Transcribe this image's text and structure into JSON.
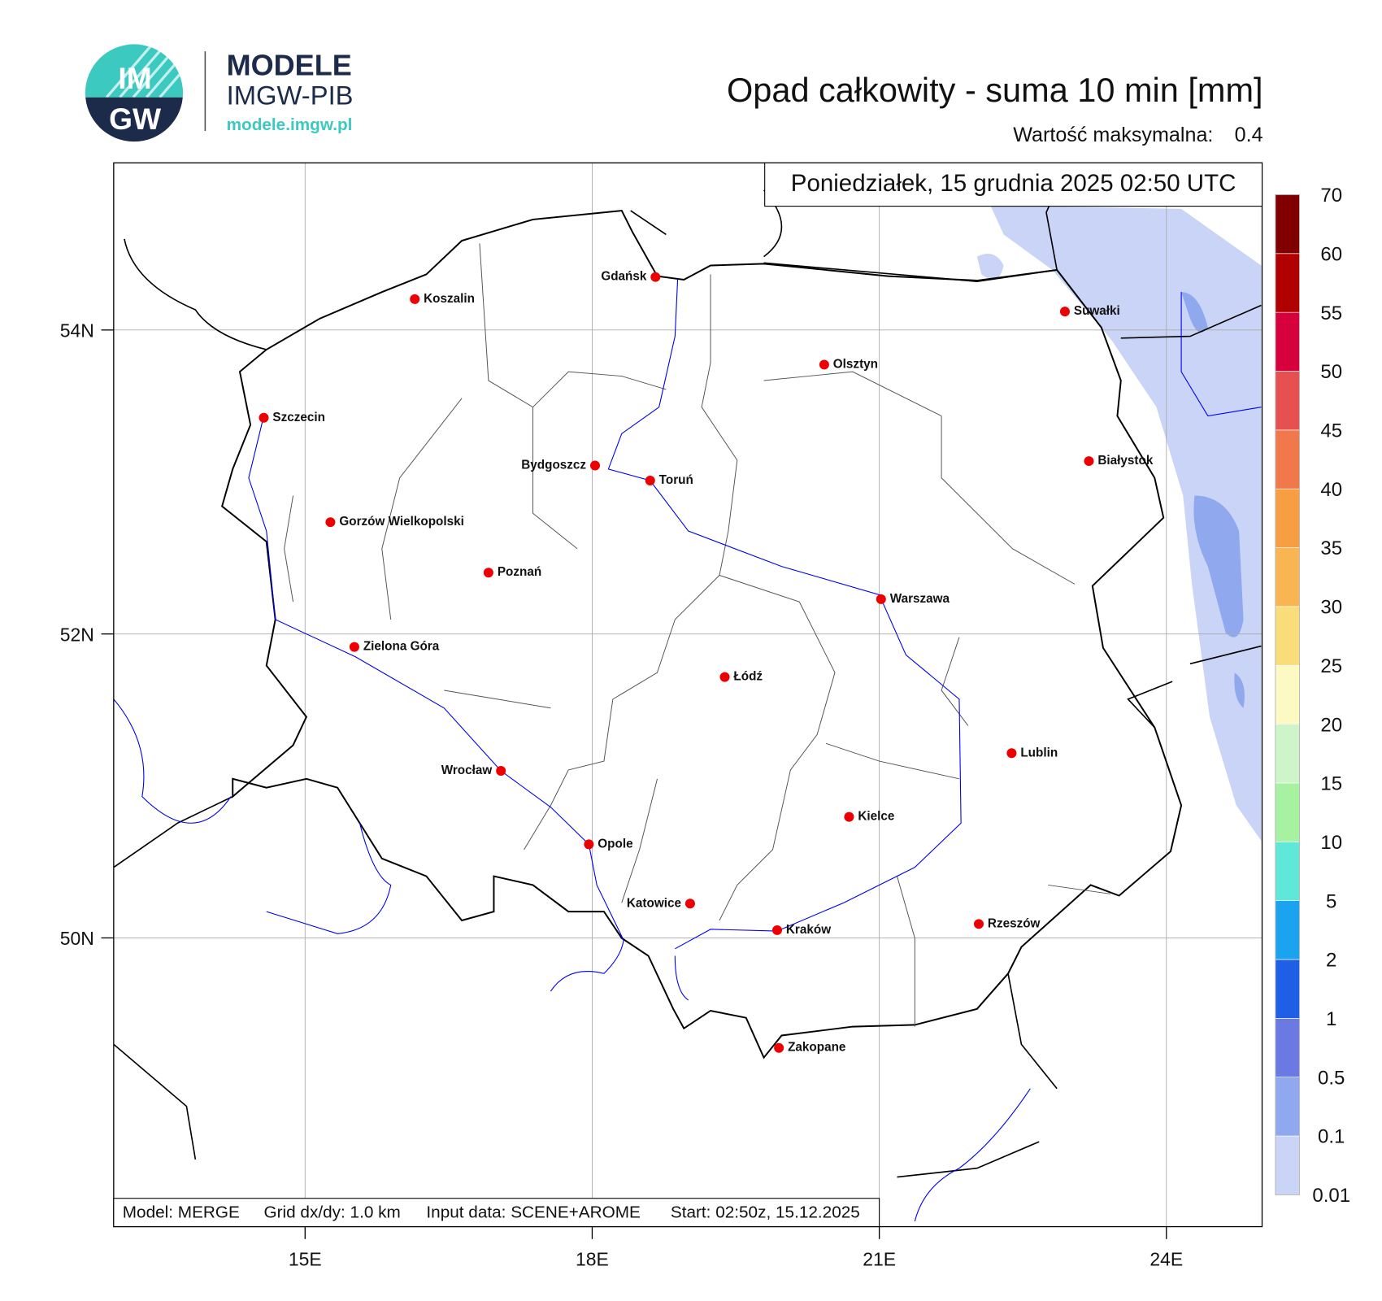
{
  "logo": {
    "badge_top": "IM",
    "badge_bottom": "GW",
    "name": "MODELE",
    "org": "IMGW-PIB",
    "url": "modele.imgw.pl"
  },
  "header": {
    "title": "Opad całkowity - suma 10 min [mm]",
    "max_label": "Wartość maksymalna:",
    "max_value": 0.4,
    "valid_time": "Poniedziałek, 15 grudnia 2025 02:50 UTC"
  },
  "map": {
    "xlim": [
      13,
      25
    ],
    "ylim": [
      48.1,
      55.1
    ],
    "xticks": [
      {
        "value": 15,
        "label": "15E"
      },
      {
        "value": 18,
        "label": "18E"
      },
      {
        "value": 21,
        "label": "21E"
      },
      {
        "value": 24,
        "label": "24E"
      }
    ],
    "yticks": [
      {
        "value": 50,
        "label": "50N"
      },
      {
        "value": 52,
        "label": "52N"
      },
      {
        "value": 54,
        "label": "54N"
      }
    ],
    "cities": [
      "Gdańsk",
      "Koszalin",
      "Suwałki",
      "Olsztyn",
      "Szczecin",
      "Bydgoszcz",
      "Toruń",
      "Białystok",
      "Gorzów Wielkopolski",
      "Poznań",
      "Warszawa",
      "Zielona Góra",
      "Łódź",
      "Lublin",
      "Wrocław",
      "Kielce",
      "Opole",
      "Katowice",
      "Kraków",
      "Rzeszów",
      "Zakopane"
    ]
  },
  "colorbar": {
    "levels": [
      0.01,
      0.1,
      0.5,
      1,
      2,
      5,
      10,
      15,
      20,
      25,
      30,
      35,
      40,
      45,
      50,
      55,
      60,
      70
    ],
    "colors": [
      "#c9d4f6",
      "#8fa8ee",
      "#6a7ae2",
      "#1f5fe6",
      "#1ba3f0",
      "#5fe8d8",
      "#a6f2a0",
      "#cdf5c9",
      "#fcf9c2",
      "#f8dd7a",
      "#f8b552",
      "#f89e42",
      "#f0784a",
      "#e65050",
      "#d6003c",
      "#b00000",
      "#800000"
    ]
  },
  "footer": {
    "model": "Model: MERGE",
    "grid": "Grid dx/dy: 1.0 km",
    "input": "Input data: SCENE+AROME",
    "start": "Start: 02:50z, 15.12.2025"
  }
}
